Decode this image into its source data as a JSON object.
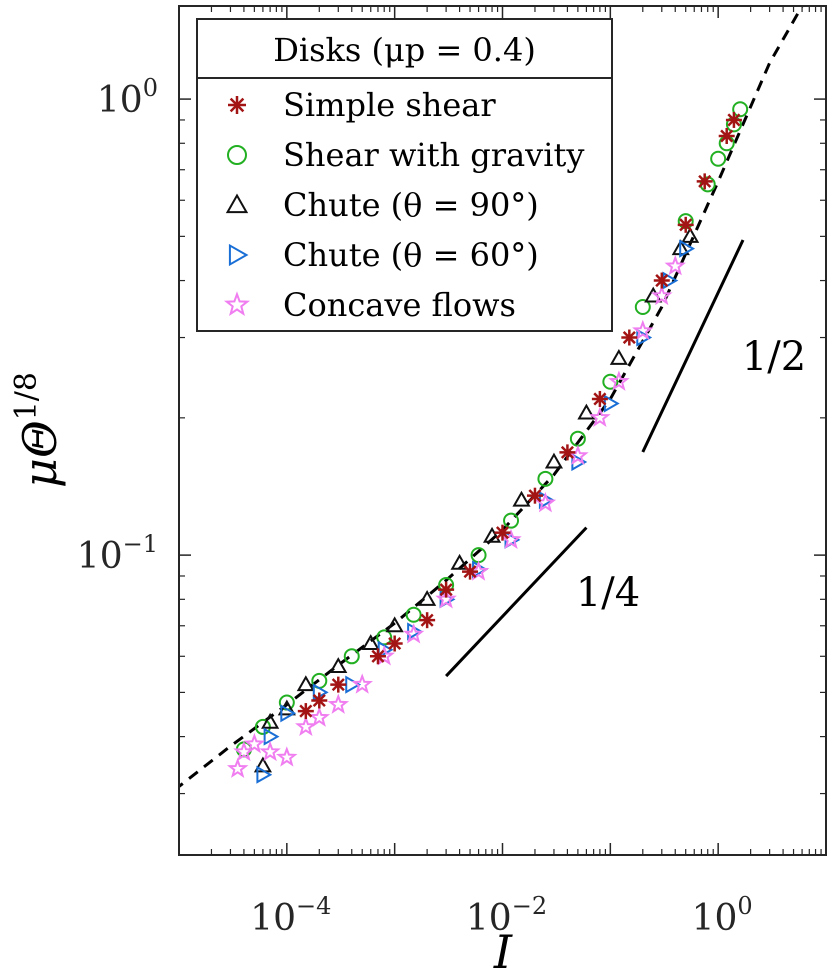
{
  "chart_data": {
    "type": "scatter",
    "x_scale": "log",
    "y_scale": "log",
    "xlim": [
      1e-05,
      10
    ],
    "ylim": [
      0.022,
      1.6
    ],
    "xlabel": "I",
    "ylabel_main": "μΘ",
    "ylabel_exp": "1/8",
    "x_ticks": [
      {
        "value": 0.0001,
        "base": "10",
        "exp": "−4"
      },
      {
        "value": 0.01,
        "base": "10",
        "exp": "−2"
      },
      {
        "value": 1,
        "base": "10",
        "exp": "0"
      }
    ],
    "y_ticks": [
      {
        "value": 0.1,
        "base": "10",
        "exp": "−1"
      },
      {
        "value": 1,
        "base": "10",
        "exp": "0"
      }
    ],
    "legend": {
      "title": "Disks (μp = 0.4)",
      "position": "top-left",
      "entries": [
        {
          "label": "Simple shear",
          "marker": "asterisk",
          "color": "#a31515"
        },
        {
          "label": "Shear with gravity",
          "marker": "circle",
          "color": "#22b022"
        },
        {
          "label": "Chute (θ = 90°)",
          "marker": "triangle-up",
          "color": "#111111"
        },
        {
          "label": "Chute (θ = 60°)",
          "marker": "triangle-right",
          "color": "#1a6fd6"
        },
        {
          "label": "Concave flows",
          "marker": "star",
          "color": "#f07ef0"
        }
      ]
    },
    "fit_curve": {
      "style": "dashed",
      "color": "#000000",
      "x": [
        9e-06,
        3e-05,
        0.0001,
        0.0003,
        0.001,
        0.003,
        0.01,
        0.03,
        0.1,
        0.3,
        1,
        3,
        6
      ],
      "y": [
        0.0305,
        0.0381,
        0.047,
        0.0574,
        0.0709,
        0.088,
        0.1135,
        0.15,
        0.22,
        0.35,
        0.66,
        1.2,
        1.6
      ]
    },
    "series": [
      {
        "name": "Simple shear",
        "marker": "asterisk",
        "color": "#a31515",
        "x": [
          0.00015,
          0.0002,
          0.0003,
          0.0007,
          0.001,
          0.002,
          0.003,
          0.005,
          0.01,
          0.02,
          0.04,
          0.08,
          0.15,
          0.3,
          0.5,
          0.75,
          1.2,
          1.4
        ],
        "y": [
          0.0455,
          0.048,
          0.052,
          0.06,
          0.064,
          0.072,
          0.084,
          0.092,
          0.112,
          0.135,
          0.168,
          0.22,
          0.3,
          0.4,
          0.53,
          0.66,
          0.83,
          0.9
        ]
      },
      {
        "name": "Shear with gravity",
        "marker": "circle",
        "color": "#22b022",
        "x": [
          4e-05,
          6e-05,
          0.0001,
          0.0002,
          0.0004,
          0.0008,
          0.0015,
          0.003,
          0.006,
          0.012,
          0.025,
          0.05,
          0.1,
          0.2,
          0.5,
          0.8,
          1.0,
          1.2,
          1.4,
          1.6
        ],
        "y": [
          0.0375,
          0.042,
          0.0475,
          0.053,
          0.06,
          0.066,
          0.074,
          0.086,
          0.1,
          0.119,
          0.147,
          0.18,
          0.24,
          0.35,
          0.54,
          0.65,
          0.74,
          0.8,
          0.88,
          0.95
        ]
      },
      {
        "name": "Chute (θ = 90°)",
        "marker": "triangle-up",
        "color": "#111111",
        "x": [
          6e-05,
          7e-05,
          0.0001,
          0.00015,
          0.0003,
          0.0006,
          0.001,
          0.002,
          0.004,
          0.008,
          0.015,
          0.03,
          0.06,
          0.12,
          0.25,
          0.45,
          0.55
        ],
        "y": [
          0.0345,
          0.043,
          0.046,
          0.052,
          0.057,
          0.064,
          0.07,
          0.08,
          0.096,
          0.11,
          0.132,
          0.16,
          0.205,
          0.27,
          0.37,
          0.47,
          0.5
        ]
      },
      {
        "name": "Chute (θ = 60°)",
        "marker": "triangle-right",
        "color": "#1a6fd6",
        "x": [
          6e-05,
          7e-05,
          0.0001,
          0.0002,
          0.0004,
          0.0008,
          0.0015,
          0.003,
          0.006,
          0.012,
          0.025,
          0.05,
          0.1,
          0.2,
          0.35,
          0.5
        ],
        "y": [
          0.033,
          0.04,
          0.045,
          0.05,
          0.052,
          0.062,
          0.068,
          0.08,
          0.093,
          0.108,
          0.132,
          0.16,
          0.215,
          0.3,
          0.4,
          0.47
        ]
      },
      {
        "name": "Concave flows",
        "marker": "star",
        "color": "#f07ef0",
        "x": [
          3.5e-05,
          4e-05,
          5e-05,
          7e-05,
          0.0001,
          0.00015,
          0.0002,
          0.0003,
          0.0005,
          0.0008,
          0.0015,
          0.003,
          0.006,
          0.012,
          0.025,
          0.05,
          0.08,
          0.12,
          0.2,
          0.3,
          0.4
        ],
        "y": [
          0.034,
          0.037,
          0.0385,
          0.037,
          0.036,
          0.042,
          0.044,
          0.047,
          0.052,
          0.06,
          0.067,
          0.08,
          0.092,
          0.108,
          0.13,
          0.165,
          0.2,
          0.24,
          0.31,
          0.37,
          0.43
        ]
      }
    ],
    "slope_lines": [
      {
        "label": "1/4",
        "x": [
          0.003,
          0.06
        ],
        "y": [
          0.0543,
          0.1149
        ]
      },
      {
        "label": "1/2",
        "x": [
          0.2,
          1.7
        ],
        "y": [
          0.1683,
          0.4908
        ]
      }
    ]
  }
}
